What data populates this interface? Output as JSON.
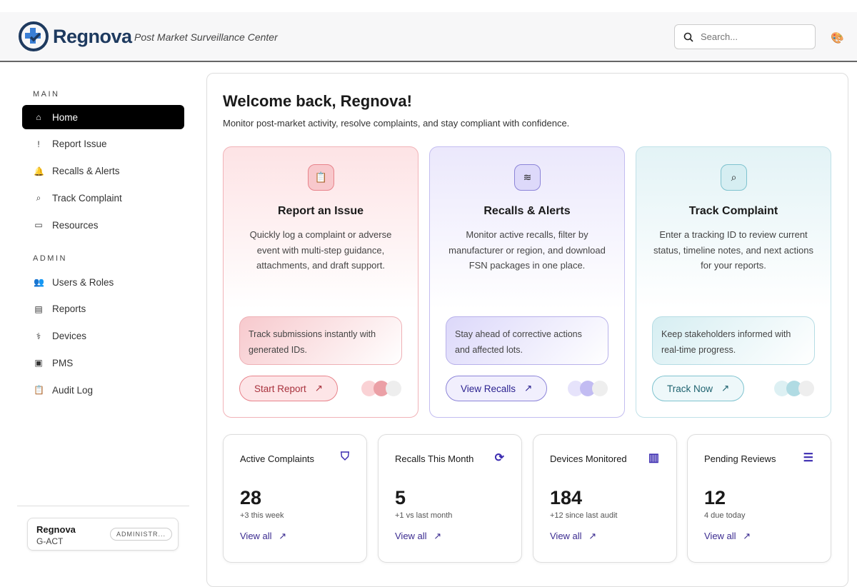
{
  "header": {
    "brand": "Regnova",
    "tagline": "Post Market Surveillance Center",
    "search_placeholder": "Search..."
  },
  "sidebar": {
    "main_label": "MAIN",
    "admin_label": "ADMIN",
    "main_items": [
      {
        "label": "Home",
        "icon": "home-icon",
        "glyph": "⌂"
      },
      {
        "label": "Report Issue",
        "icon": "alert-file-icon",
        "glyph": "!"
      },
      {
        "label": "Recalls & Alerts",
        "icon": "bell-icon",
        "glyph": "🔔"
      },
      {
        "label": "Track Complaint",
        "icon": "search-icon",
        "glyph": "⌕"
      },
      {
        "label": "Resources",
        "icon": "book-icon",
        "glyph": "▭"
      }
    ],
    "admin_items": [
      {
        "label": "Users & Roles",
        "icon": "users-icon",
        "glyph": "👥"
      },
      {
        "label": "Reports",
        "icon": "document-icon",
        "glyph": "▤"
      },
      {
        "label": "Devices",
        "icon": "stethoscope-icon",
        "glyph": "⚕"
      },
      {
        "label": "PMS",
        "icon": "chip-icon",
        "glyph": "▣"
      },
      {
        "label": "Audit Log",
        "icon": "clipboard-icon",
        "glyph": "📋"
      }
    ],
    "user": {
      "name": "Regnova",
      "org": "G-ACT",
      "role": "ADMINISTR..."
    }
  },
  "main": {
    "title": "Welcome back, Regnova!",
    "subtitle": "Monitor post-market activity, resolve complaints, and stay compliant with confidence.",
    "features": [
      {
        "title": "Report an Issue",
        "desc": "Quickly log a complaint or adverse event with multi-step guidance, attachments, and draft support.",
        "note": "Track submissions instantly with generated IDs.",
        "button": "Start Report",
        "icon": "clipboard-icon",
        "glyph": "📋",
        "accent": "#e8838b"
      },
      {
        "title": "Recalls & Alerts",
        "desc": "Monitor active recalls, filter by manufacturer or region, and download FSN packages in one place.",
        "note": "Stay ahead of corrective actions and affected lots.",
        "button": "View Recalls",
        "icon": "layers-icon",
        "glyph": "≋",
        "accent": "#8c84d8"
      },
      {
        "title": "Track Complaint",
        "desc": "Enter a tracking ID to review current status, timeline notes, and next actions for your reports.",
        "note": "Keep stakeholders informed with real-time progress.",
        "button": "Track Now",
        "icon": "search-icon",
        "glyph": "⌕",
        "accent": "#7fc3cf"
      }
    ],
    "stats": [
      {
        "title": "Active Complaints",
        "value": "28",
        "delta": "+3 this week",
        "link": "View all",
        "icon": "shield-alert-icon",
        "glyph": "⛉"
      },
      {
        "title": "Recalls This Month",
        "value": "5",
        "delta": "+1 vs last month",
        "link": "View all",
        "icon": "refresh-icon",
        "glyph": "⟳"
      },
      {
        "title": "Devices Monitored",
        "value": "184",
        "delta": "+12 since last audit",
        "link": "View all",
        "icon": "bar-chart-icon",
        "glyph": "▥"
      },
      {
        "title": "Pending Reviews",
        "value": "12",
        "delta": "4 due today",
        "link": "View all",
        "icon": "checklist-icon",
        "glyph": "☰"
      }
    ]
  }
}
